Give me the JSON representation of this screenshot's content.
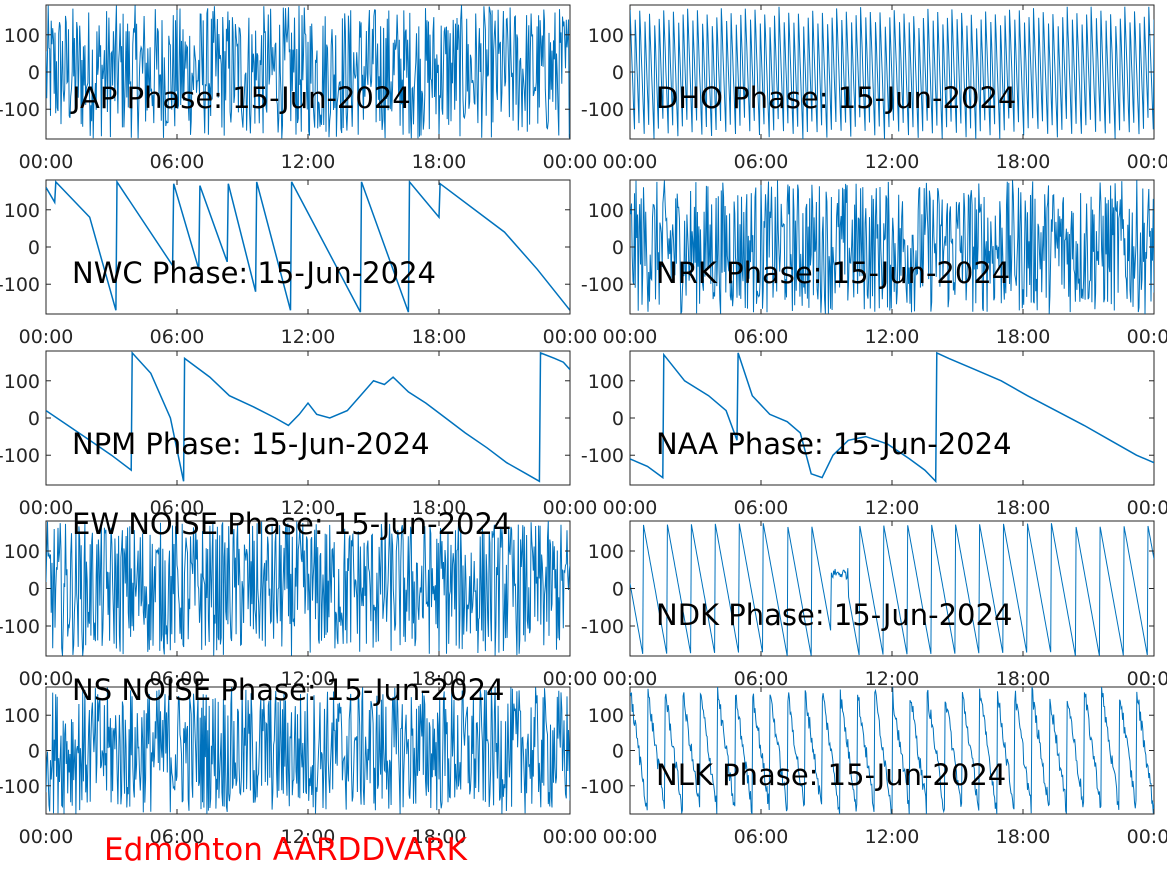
{
  "figure": {
    "footer": "Edmonton AARDDVARK",
    "footer_color": "#ff0000",
    "line_color": "#0072bd"
  },
  "chart_data": [
    {
      "type": "line",
      "title": "JAP Phase: 15-Jun-2024",
      "x_ticks": [
        "00:00",
        "06:00",
        "12:00",
        "18:00",
        "00:00"
      ],
      "y_ticks": [
        "100",
        "0",
        "-100"
      ],
      "ylim": [
        -180,
        180
      ],
      "xlim": [
        0,
        24
      ],
      "x": [
        0,
        0.6,
        1.2,
        1.8,
        2.4,
        3.0,
        3.6,
        4.2,
        4.8,
        5.4,
        6.0,
        6.6,
        7.2,
        7.8,
        8.4,
        9.0,
        9.6,
        10.2,
        10.8,
        11.4,
        12.0,
        12.6,
        13.2,
        13.8,
        14.4,
        15.0,
        15.6,
        16.2,
        16.8,
        17.4,
        18.0,
        18.6,
        19.2,
        19.8,
        20.4,
        21.0,
        21.6,
        22.2,
        22.8,
        23.4,
        24
      ],
      "y": [
        10,
        -60,
        120,
        -150,
        80,
        -20,
        160,
        -170,
        60,
        40,
        -120,
        150,
        -90,
        30,
        170,
        -160,
        100,
        -40,
        140,
        -175,
        20,
        -130,
        165,
        -80,
        50,
        -150,
        120,
        -30,
        170,
        -160,
        90,
        -60,
        150,
        -170,
        40,
        -110,
        160,
        -20,
        130,
        -150,
        60
      ],
      "mode": "noise",
      "fill": "banded",
      "note": "dense wrapped phase"
    },
    {
      "type": "line",
      "title": "DHO Phase: 15-Jun-2024",
      "x_ticks": [
        "00:00",
        "06:00",
        "12:00",
        "18:00",
        "00:00"
      ],
      "y_ticks": [
        "100",
        "0",
        "-100"
      ],
      "ylim": [
        -180,
        180
      ],
      "xlim": [
        0,
        24
      ],
      "x": [
        0,
        24
      ],
      "y": [
        0,
        0
      ],
      "mode": "saw-fast"
    },
    {
      "type": "line",
      "title": "NWC Phase: 15-Jun-2024",
      "x_ticks": [
        "00:00",
        "06:00",
        "12:00",
        "18:00",
        "00:00"
      ],
      "y_ticks": [
        "100",
        "0",
        "-100"
      ],
      "ylim": [
        -180,
        180
      ],
      "xlim": [
        0,
        24
      ],
      "x": [
        0,
        0.4,
        0.45,
        2.0,
        3.2,
        3.25,
        5.8,
        5.85,
        7.0,
        7.05,
        8.3,
        8.35,
        9.6,
        9.65,
        11.2,
        11.25,
        14.4,
        14.45,
        16.6,
        16.65,
        18.0,
        18.05,
        21.0,
        22.5,
        24
      ],
      "y": [
        160,
        120,
        175,
        80,
        -170,
        175,
        -50,
        170,
        -60,
        165,
        -40,
        170,
        -120,
        175,
        -170,
        175,
        -175,
        175,
        -175,
        175,
        80,
        170,
        40,
        -60,
        -170
      ],
      "mode": "saw"
    },
    {
      "type": "line",
      "title": "NRK Phase: 15-Jun-2024",
      "x_ticks": [
        "00:00",
        "06:00",
        "12:00",
        "18:00",
        "00:00"
      ],
      "y_ticks": [
        "100",
        "0",
        "-100"
      ],
      "ylim": [
        -180,
        180
      ],
      "xlim": [
        0,
        24
      ],
      "x": [
        0,
        24
      ],
      "y": [
        0,
        0
      ],
      "mode": "noise"
    },
    {
      "type": "line",
      "title": "NPM Phase: 15-Jun-2024",
      "x_ticks": [
        "00:00",
        "06:00",
        "12:00",
        "18:00",
        "00:00"
      ],
      "y_ticks": [
        "100",
        "0",
        "-100"
      ],
      "ylim": [
        -180,
        180
      ],
      "xlim": [
        0,
        24
      ],
      "x": [
        0,
        1.0,
        2.0,
        3.0,
        3.9,
        3.95,
        4.8,
        5.7,
        6.3,
        6.35,
        7.5,
        8.4,
        9.5,
        10.5,
        11.1,
        11.6,
        12.0,
        12.4,
        13.0,
        13.8,
        14.4,
        15.0,
        15.5,
        15.9,
        16.6,
        17.4,
        18.3,
        19.2,
        20.2,
        21.1,
        22.0,
        22.6,
        22.65,
        23.3,
        23.7,
        24
      ],
      "y": [
        20,
        -20,
        -60,
        -100,
        -140,
        175,
        120,
        0,
        -170,
        160,
        110,
        60,
        30,
        0,
        -20,
        10,
        40,
        10,
        0,
        20,
        60,
        100,
        90,
        110,
        70,
        40,
        0,
        -40,
        -80,
        -120,
        -150,
        -170,
        175,
        160,
        150,
        130
      ],
      "mode": "line"
    },
    {
      "type": "line",
      "title": "NAA Phase: 15-Jun-2024",
      "x_ticks": [
        "00:00",
        "06:00",
        "12:00",
        "18:00",
        "00:00"
      ],
      "y_ticks": [
        "100",
        "0",
        "-100"
      ],
      "ylim": [
        -180,
        180
      ],
      "xlim": [
        0,
        24
      ],
      "x": [
        0,
        0.8,
        1.5,
        1.55,
        2.5,
        3.6,
        4.4,
        4.9,
        4.95,
        5.6,
        6.4,
        7.2,
        7.8,
        8.3,
        8.8,
        9.3,
        10.0,
        10.8,
        11.8,
        12.8,
        13.5,
        14.0,
        14.05,
        14.6,
        15.8,
        17.0,
        18.2,
        19.5,
        20.8,
        22.0,
        23.2,
        24
      ],
      "y": [
        -110,
        -130,
        -160,
        170,
        100,
        60,
        20,
        -60,
        175,
        60,
        10,
        -10,
        -40,
        -150,
        -160,
        -100,
        -60,
        -50,
        -70,
        -110,
        -140,
        -170,
        175,
        160,
        130,
        100,
        60,
        20,
        -20,
        -60,
        -100,
        -120
      ],
      "mode": "line"
    },
    {
      "type": "line",
      "title": "EW NOISE Phase: 15-Jun-2024",
      "x_ticks": [
        "00:00",
        "06:00",
        "12:00",
        "18:00",
        "00:00"
      ],
      "y_ticks": [
        "100",
        "0",
        "-100"
      ],
      "ylim": [
        -180,
        180
      ],
      "xlim": [
        0,
        24
      ],
      "x": [
        0,
        24
      ],
      "y": [
        0,
        0
      ],
      "mode": "noise"
    },
    {
      "type": "line",
      "title": "NDK Phase: 15-Jun-2024",
      "x_ticks": [
        "00:00",
        "06:00",
        "12:00",
        "18:00",
        "00:00"
      ],
      "y_ticks": [
        "100",
        "0",
        "-100"
      ],
      "ylim": [
        -180,
        180
      ],
      "xlim": [
        0,
        24
      ],
      "x": [
        0,
        24
      ],
      "y": [
        0,
        0
      ],
      "mode": "saw-med"
    },
    {
      "type": "line",
      "title": "NS NOISE Phase: 15-Jun-2024",
      "x_ticks": [
        "00:00",
        "06:00",
        "12:00",
        "18:00",
        "00:00"
      ],
      "y_ticks": [
        "100",
        "0",
        "-100"
      ],
      "ylim": [
        -180,
        180
      ],
      "xlim": [
        0,
        24
      ],
      "x": [
        0,
        24
      ],
      "y": [
        0,
        0
      ],
      "mode": "noise"
    },
    {
      "type": "line",
      "title": "NLK Phase: 15-Jun-2024",
      "x_ticks": [
        "00:00",
        "06:00",
        "12:00",
        "18:00",
        "00:00"
      ],
      "y_ticks": [
        "100",
        "0",
        "-100"
      ],
      "ylim": [
        -180,
        180
      ],
      "xlim": [
        0,
        24
      ],
      "x": [
        0,
        24
      ],
      "y": [
        0,
        0
      ],
      "mode": "saw-noisy"
    }
  ]
}
